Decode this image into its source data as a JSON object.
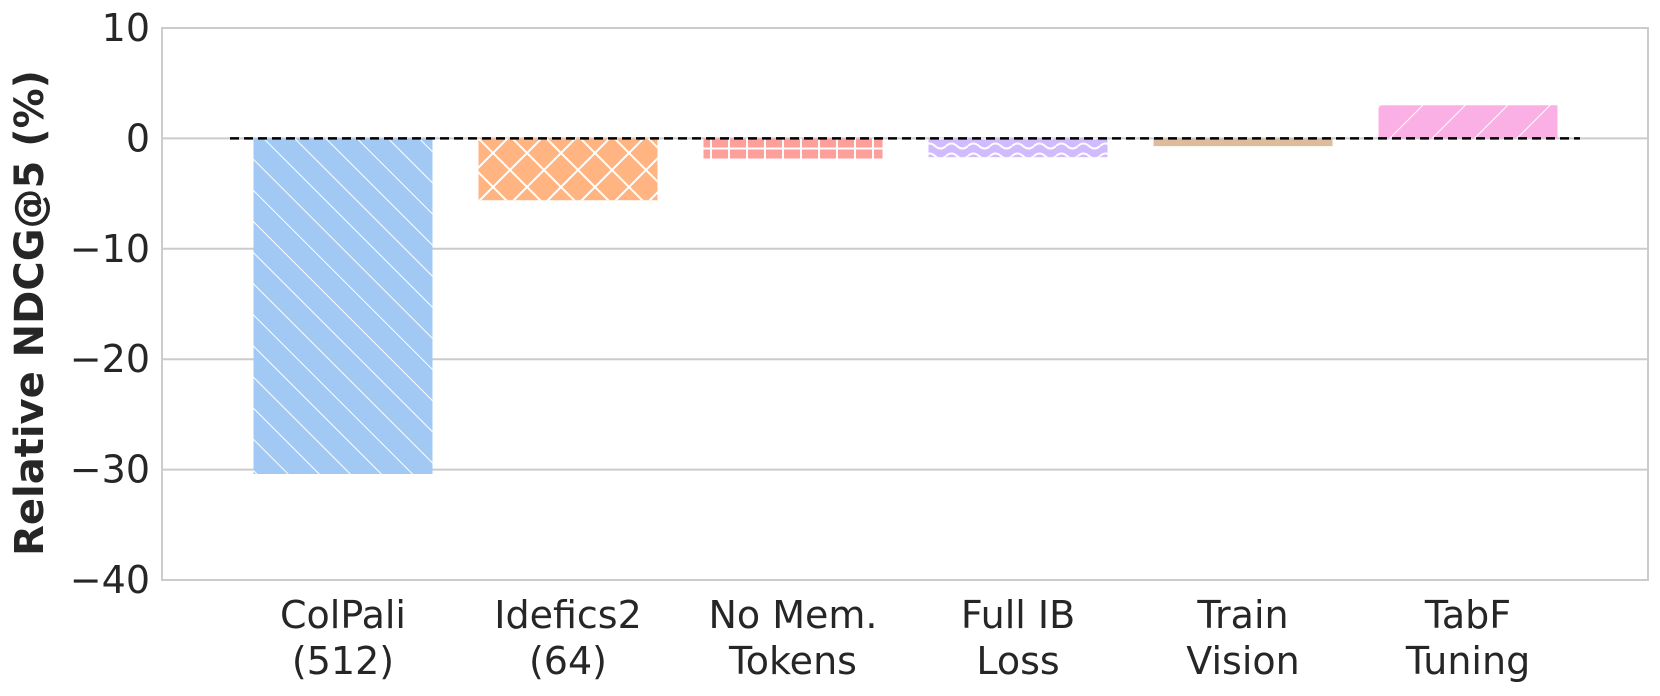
{
  "chart_data": {
    "type": "bar",
    "title": "",
    "xlabel": "",
    "ylabel": "Relative NDCG@5 (%)",
    "ylim": [
      -40,
      10
    ],
    "yticks": [
      10,
      0,
      -10,
      -20,
      -30,
      -40
    ],
    "ytick_labels": [
      "10",
      "0",
      "−10",
      "−20",
      "−30",
      "−40"
    ],
    "grid": true,
    "reference_line": 0,
    "categories": [
      [
        "ColPali",
        "(512)"
      ],
      [
        "Idefics2",
        "(64)"
      ],
      [
        "No Mem.",
        "Tokens"
      ],
      [
        "Full IB",
        "Loss"
      ],
      [
        "Train",
        "Vision"
      ],
      [
        "TabF",
        "Tuning"
      ]
    ],
    "values": [
      -30.4,
      -5.6,
      -2.0,
      -1.7,
      -0.7,
      3.0
    ],
    "colors": [
      "#a1c9f4",
      "#ffb482",
      "#ff9f9b",
      "#d0bbff",
      "#debb9b",
      "#fab0e4"
    ],
    "hatches": [
      "diagonal",
      "crosshatch",
      "grid",
      "wave",
      "none",
      "diagonal-back"
    ]
  }
}
